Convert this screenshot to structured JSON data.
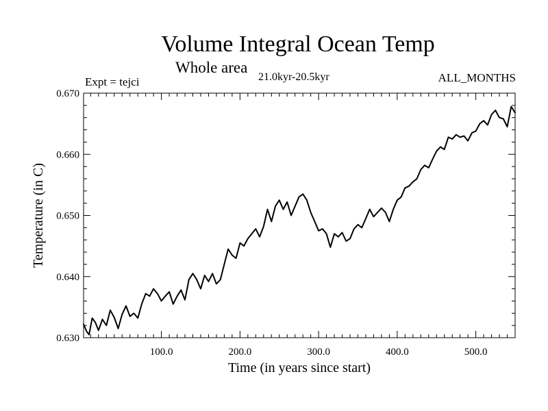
{
  "chart_data": {
    "type": "line",
    "title": "Volume Integral Ocean Temp",
    "subtitle": "Whole area",
    "period": "21.0kyr-20.5kyr",
    "experiment_label": "Expt = tejci",
    "season_label": "ALL_MONTHS",
    "xlabel": "Time (in years since start)",
    "ylabel": "Temperature (in C)",
    "xlim": [
      1,
      550
    ],
    "ylim": [
      0.63,
      0.67
    ],
    "x_ticks": [
      100,
      200,
      300,
      400,
      500
    ],
    "x_tick_labels": [
      "100.0",
      "200.0",
      "300.0",
      "400.0",
      "500.0"
    ],
    "y_ticks": [
      0.63,
      0.64,
      0.65,
      0.66,
      0.67
    ],
    "y_tick_labels": [
      "0.630",
      "0.640",
      "0.650",
      "0.660",
      "0.670"
    ],
    "series": [
      {
        "name": "Volume integral ocean temperature",
        "color": "#000000",
        "x": [
          1,
          5,
          8,
          12,
          16,
          20,
          25,
          30,
          35,
          40,
          45,
          50,
          55,
          60,
          65,
          70,
          75,
          80,
          85,
          90,
          95,
          100,
          105,
          110,
          115,
          120,
          125,
          130,
          135,
          140,
          145,
          150,
          155,
          160,
          165,
          170,
          175,
          180,
          185,
          190,
          195,
          200,
          205,
          210,
          215,
          220,
          225,
          230,
          235,
          240,
          245,
          250,
          255,
          260,
          265,
          270,
          275,
          280,
          285,
          290,
          295,
          300,
          305,
          310,
          315,
          320,
          325,
          330,
          335,
          340,
          345,
          350,
          355,
          360,
          365,
          370,
          375,
          380,
          385,
          390,
          395,
          400,
          405,
          410,
          415,
          420,
          425,
          430,
          435,
          440,
          445,
          450,
          455,
          460,
          465,
          470,
          475,
          480,
          485,
          490,
          495,
          500,
          505,
          510,
          515,
          520,
          525,
          530,
          535,
          540,
          545,
          550
        ],
        "values": [
          0.6322,
          0.631,
          0.6305,
          0.6332,
          0.6325,
          0.6312,
          0.633,
          0.632,
          0.6345,
          0.6333,
          0.6315,
          0.6338,
          0.6352,
          0.6335,
          0.634,
          0.6332,
          0.6355,
          0.6372,
          0.6368,
          0.638,
          0.6372,
          0.636,
          0.6368,
          0.6375,
          0.6355,
          0.6368,
          0.6378,
          0.6362,
          0.6395,
          0.6405,
          0.6395,
          0.638,
          0.6402,
          0.6392,
          0.6405,
          0.6388,
          0.6395,
          0.642,
          0.6445,
          0.6435,
          0.643,
          0.6455,
          0.645,
          0.6462,
          0.647,
          0.6478,
          0.6465,
          0.6482,
          0.651,
          0.649,
          0.6515,
          0.6525,
          0.651,
          0.6522,
          0.65,
          0.6515,
          0.653,
          0.6535,
          0.6525,
          0.6505,
          0.649,
          0.6475,
          0.6478,
          0.647,
          0.6448,
          0.647,
          0.6465,
          0.6472,
          0.6458,
          0.6462,
          0.6478,
          0.6485,
          0.648,
          0.6495,
          0.651,
          0.6498,
          0.6505,
          0.6512,
          0.6505,
          0.649,
          0.651,
          0.6525,
          0.653,
          0.6545,
          0.6548,
          0.6555,
          0.656,
          0.6575,
          0.6582,
          0.6578,
          0.6592,
          0.6605,
          0.6612,
          0.6608,
          0.6628,
          0.6625,
          0.6632,
          0.6628,
          0.663,
          0.6622,
          0.6635,
          0.6638,
          0.665,
          0.6655,
          0.6648,
          0.6665,
          0.6672,
          0.666,
          0.6658,
          0.6645,
          0.6678,
          0.6668
        ]
      }
    ]
  }
}
